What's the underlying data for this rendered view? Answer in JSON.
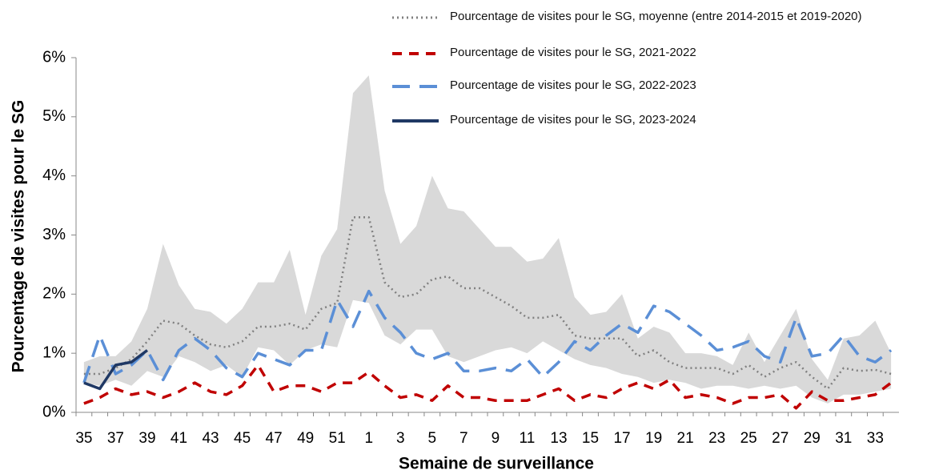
{
  "chart_data": {
    "type": "line",
    "xlabel": "Semaine de surveillance",
    "ylabel": "Pourcentage de visites pour le SG",
    "categories": [
      35,
      null,
      37,
      null,
      39,
      null,
      41,
      null,
      43,
      null,
      45,
      null,
      47,
      null,
      49,
      null,
      51,
      null,
      1,
      null,
      3,
      null,
      5,
      null,
      7,
      null,
      9,
      null,
      11,
      null,
      13,
      null,
      15,
      null,
      17,
      null,
      19,
      null,
      21,
      null,
      23,
      null,
      25,
      null,
      27,
      null,
      29,
      null,
      31,
      null,
      33,
      null
    ],
    "ylim": [
      0,
      6
    ],
    "yticks": [
      {
        "value": 0,
        "label": "0%"
      },
      {
        "value": 1,
        "label": "1%"
      },
      {
        "value": 2,
        "label": "2%"
      },
      {
        "value": 3,
        "label": "3%"
      },
      {
        "value": 4,
        "label": "4%"
      },
      {
        "value": 5,
        "label": "5%"
      },
      {
        "value": 6,
        "label": "6%"
      }
    ],
    "band": {
      "color": "#d9d9d9",
      "upper": [
        0.85,
        0.95,
        0.95,
        1.2,
        1.75,
        2.85,
        2.15,
        1.75,
        1.7,
        1.5,
        1.75,
        2.2,
        2.2,
        2.75,
        1.65,
        2.65,
        3.1,
        5.4,
        5.7,
        3.75,
        2.85,
        3.15,
        4.0,
        3.45,
        3.4,
        3.1,
        2.8,
        2.8,
        2.55,
        2.6,
        2.95,
        1.95,
        1.65,
        1.7,
        2.0,
        1.25,
        1.45,
        1.35,
        1.0,
        1.0,
        0.95,
        0.8,
        1.35,
        0.85,
        1.3,
        1.75,
        0.9,
        0.55,
        1.25,
        1.3,
        1.55,
        1.0
      ],
      "lower": [
        0.5,
        0.45,
        0.55,
        0.45,
        0.7,
        0.6,
        0.95,
        0.85,
        0.7,
        0.8,
        0.6,
        1.1,
        1.05,
        0.8,
        1.05,
        1.15,
        1.1,
        1.9,
        1.85,
        1.3,
        1.15,
        1.4,
        1.4,
        0.95,
        0.85,
        0.95,
        1.05,
        1.1,
        1.0,
        1.2,
        1.05,
        0.9,
        0.8,
        0.75,
        0.65,
        0.6,
        0.5,
        0.55,
        0.5,
        0.4,
        0.45,
        0.45,
        0.4,
        0.45,
        0.4,
        0.45,
        0.25,
        0.15,
        0.3,
        0.3,
        0.35,
        0.4
      ]
    },
    "series": [
      {
        "name": "Pourcentage de visites pour le SG, moyenne (entre 2014-2015 et 2019-2020)",
        "color": "#808080",
        "style": "dotted",
        "values": [
          0.65,
          0.65,
          0.75,
          0.9,
          1.2,
          1.55,
          1.5,
          1.3,
          1.15,
          1.1,
          1.2,
          1.45,
          1.45,
          1.5,
          1.4,
          1.75,
          1.85,
          3.3,
          3.3,
          2.2,
          1.95,
          2.0,
          2.25,
          2.3,
          2.1,
          2.1,
          1.95,
          1.8,
          1.6,
          1.6,
          1.65,
          1.3,
          1.25,
          1.25,
          1.25,
          0.95,
          1.05,
          0.85,
          0.75,
          0.75,
          0.75,
          0.65,
          0.8,
          0.6,
          0.75,
          0.85,
          0.6,
          0.4,
          0.75,
          0.7,
          0.72,
          0.65
        ]
      },
      {
        "name": "Pourcentage de visites pour le SG, 2021-2022",
        "color": "#c00000",
        "style": "dashed",
        "values": [
          0.15,
          0.25,
          0.4,
          0.3,
          0.35,
          0.25,
          0.35,
          0.5,
          0.35,
          0.3,
          0.45,
          0.8,
          0.35,
          0.45,
          0.45,
          0.35,
          0.5,
          0.5,
          0.68,
          0.45,
          0.25,
          0.3,
          0.2,
          0.45,
          0.25,
          0.25,
          0.2,
          0.2,
          0.2,
          0.3,
          0.4,
          0.2,
          0.3,
          0.25,
          0.4,
          0.5,
          0.4,
          0.55,
          0.25,
          0.3,
          0.25,
          0.15,
          0.25,
          0.25,
          0.3,
          0.07,
          0.35,
          0.2,
          0.2,
          0.25,
          0.3,
          0.5
        ]
      },
      {
        "name": "Pourcentage de visites pour le SG, 2022-2023",
        "color": "#5b8fd6",
        "style": "longdash",
        "values": [
          0.5,
          1.3,
          0.65,
          0.8,
          1.05,
          0.55,
          1.05,
          1.25,
          1.05,
          0.75,
          0.6,
          1.0,
          0.9,
          0.8,
          1.05,
          1.05,
          1.9,
          1.45,
          2.05,
          1.6,
          1.35,
          1.0,
          0.9,
          1.0,
          0.7,
          0.7,
          0.75,
          0.7,
          0.9,
          0.6,
          0.85,
          1.2,
          1.05,
          1.3,
          1.5,
          1.35,
          1.8,
          1.7,
          1.5,
          1.3,
          1.05,
          1.1,
          1.2,
          0.95,
          0.85,
          1.6,
          0.95,
          1.0,
          1.3,
          0.95,
          0.85,
          1.05
        ]
      },
      {
        "name": "Pourcentage de visites pour le SG, 2023-2024",
        "color": "#1f3864",
        "style": "solid",
        "values": [
          0.5,
          0.4,
          0.8,
          0.85,
          1.05,
          null,
          null,
          null,
          null,
          null,
          null,
          null,
          null,
          null,
          null,
          null,
          null,
          null,
          null,
          null,
          null,
          null,
          null,
          null,
          null,
          null,
          null,
          null,
          null,
          null,
          null,
          null,
          null,
          null,
          null,
          null,
          null,
          null,
          null,
          null,
          null,
          null,
          null,
          null,
          null,
          null,
          null,
          null,
          null,
          null,
          null,
          null
        ]
      }
    ]
  }
}
